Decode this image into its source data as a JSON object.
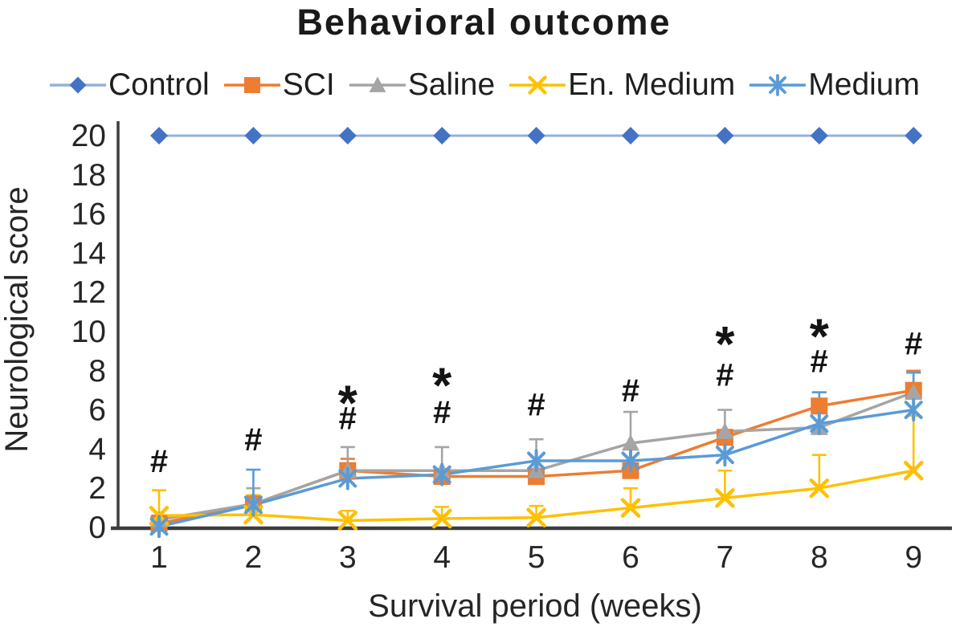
{
  "chart_data": {
    "type": "line",
    "title": "Behavioral outcome",
    "xlabel": "Survival period (weeks)",
    "ylabel": "Neurological score",
    "x": [
      1,
      2,
      3,
      4,
      5,
      6,
      7,
      8,
      9
    ],
    "ylim": [
      0,
      20
    ],
    "ytick_step": 2,
    "grid": false,
    "legend_position": "top",
    "series": [
      {
        "name": "Control",
        "color": "#4472C4",
        "line_color": "#93B1DC",
        "marker": "diamond",
        "values": [
          20,
          20,
          20,
          20,
          20,
          20,
          20,
          20,
          20
        ],
        "error_upper": [
          null,
          null,
          null,
          null,
          null,
          null,
          null,
          null,
          null
        ]
      },
      {
        "name": "SCI",
        "color": "#ED7D31",
        "line_color": "#ED7D31",
        "marker": "square",
        "values": [
          0.2,
          1.2,
          2.9,
          2.6,
          2.6,
          2.9,
          4.6,
          6.2,
          7.0
        ],
        "error_upper": [
          0.4,
          null,
          0.6,
          null,
          null,
          null,
          null,
          0.7,
          1.0
        ]
      },
      {
        "name": "Saline",
        "color": "#A5A5A5",
        "line_color": "#A5A5A5",
        "marker": "triangle",
        "values": [
          0.4,
          1.2,
          2.9,
          2.9,
          2.9,
          4.3,
          4.9,
          5.1,
          6.9
        ],
        "error_upper": [
          null,
          0.8,
          1.2,
          1.2,
          1.6,
          1.6,
          1.1,
          null,
          1.0
        ]
      },
      {
        "name": "En. Medium",
        "color": "#FFC000",
        "line_color": "#FFC000",
        "marker": "x",
        "values": [
          0.6,
          0.65,
          0.35,
          0.45,
          0.5,
          1.0,
          1.5,
          2.0,
          2.9
        ],
        "error_upper": [
          1.3,
          1.0,
          0.5,
          0.6,
          0.6,
          1.0,
          1.4,
          1.7,
          2.8
        ]
      },
      {
        "name": "Medium",
        "color": "#5B9BD5",
        "line_color": "#5B9BD5",
        "marker": "star",
        "values": [
          0.05,
          1.15,
          2.5,
          2.7,
          3.4,
          3.4,
          3.7,
          5.3,
          6.0
        ],
        "error_upper": [
          null,
          1.8,
          null,
          null,
          null,
          null,
          null,
          1.6,
          1.9
        ]
      }
    ],
    "annotations": [
      {
        "week": 1,
        "symbol": "#",
        "y": 3.4
      },
      {
        "week": 2,
        "symbol": "#",
        "y": 4.5
      },
      {
        "week": 3,
        "symbol": "*",
        "y": 7.2
      },
      {
        "week": 3,
        "symbol": "#",
        "y": 5.6
      },
      {
        "week": 4,
        "symbol": "*",
        "y": 8.1
      },
      {
        "week": 4,
        "symbol": "#",
        "y": 5.9
      },
      {
        "week": 5,
        "symbol": "#",
        "y": 6.3
      },
      {
        "week": 6,
        "symbol": "#",
        "y": 7.0
      },
      {
        "week": 7,
        "symbol": "*",
        "y": 10.2
      },
      {
        "week": 7,
        "symbol": "#",
        "y": 7.8
      },
      {
        "week": 8,
        "symbol": "*",
        "y": 10.6
      },
      {
        "week": 8,
        "symbol": "#",
        "y": 8.5
      },
      {
        "week": 9,
        "symbol": "#",
        "y": 9.4
      }
    ]
  }
}
